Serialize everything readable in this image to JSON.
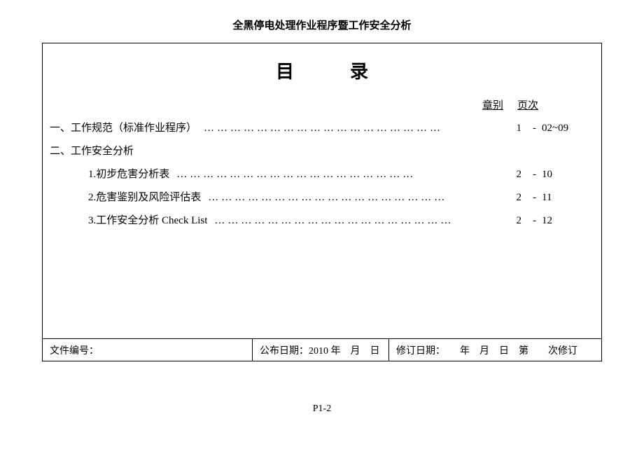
{
  "header": {
    "title": "全黑停电处理作业程序暨工作安全分析"
  },
  "toc": {
    "title": "目录",
    "columnHeaders": {
      "chapter": "章别",
      "page": "页次"
    },
    "items": [
      {
        "label": "一、工作规范（标准作业程序）",
        "indent": false,
        "hasDots": true,
        "chapter": "1",
        "dash": "-",
        "page": "02~09"
      },
      {
        "label": "二、工作安全分析",
        "indent": false,
        "hasDots": false,
        "chapter": "",
        "dash": "",
        "page": ""
      },
      {
        "label": "1.初步危害分析表",
        "indent": true,
        "hasDots": true,
        "chapter": "2",
        "dash": "-",
        "page": "10"
      },
      {
        "label": "2.危害鉴别及风险评估表",
        "indent": true,
        "hasDots": true,
        "chapter": "2",
        "dash": "-",
        "page": "11"
      },
      {
        "label": "3.工作安全分析  Check List",
        "indent": true,
        "hasDots": true,
        "chapter": "2",
        "dash": "-",
        "page": "12"
      }
    ]
  },
  "footer": {
    "left": "文件编号：",
    "mid": "公布日期：2010 年　月　日",
    "right": "修订日期：　　年　月　日　第　　次修订"
  },
  "pageNumber": "P1-2",
  "dots": "………………………………………………"
}
